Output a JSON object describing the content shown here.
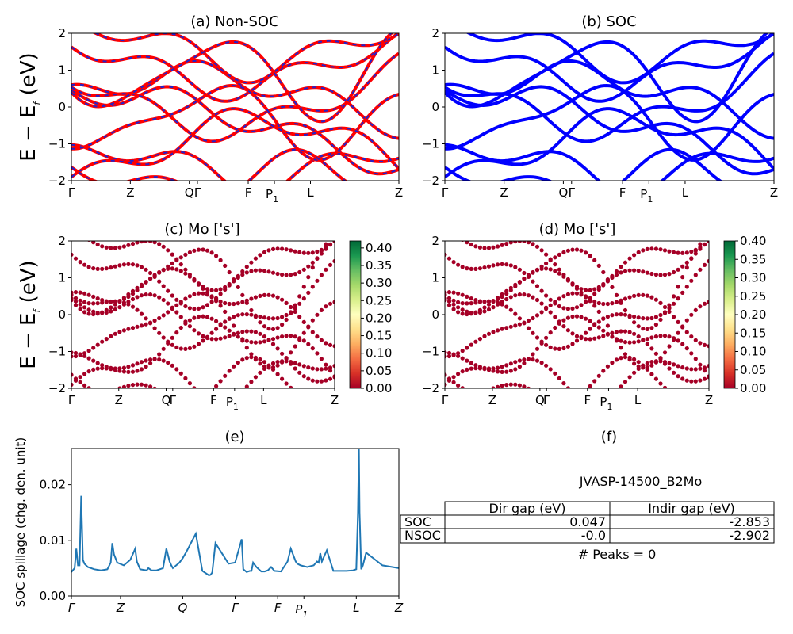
{
  "colors": {
    "nonsoc_band": "#ff0000",
    "nonsoc_dash": "#2222cc",
    "soc_band": "#0000ff",
    "spillage_line": "#1f77b4",
    "colormap": [
      "#a50026",
      "#d73027",
      "#f46d43",
      "#fdae61",
      "#fee08b",
      "#ffffbf",
      "#d9ef8b",
      "#a6d96a",
      "#66bd63",
      "#1a9850",
      "#006837"
    ]
  },
  "band_axes": {
    "ylim": [
      -2,
      2
    ],
    "yticks": [
      "2",
      "1",
      "0",
      "−1",
      "−2"
    ],
    "ylabel_main": "E − E",
    "ylabel_sub": "f",
    "ylabel_unit": " (eV)",
    "kpath": [
      {
        "label": "Γ",
        "pos": 0.0
      },
      {
        "label": "Z",
        "pos": 0.18
      },
      {
        "label": "Q",
        "pos": 0.36
      },
      {
        "label": "Γ",
        "pos": 0.385
      },
      {
        "label": "F",
        "pos": 0.54
      },
      {
        "label": "P",
        "sub": "1",
        "pos": 0.62
      },
      {
        "label": "L",
        "pos": 0.73
      },
      {
        "label": "Z",
        "pos": 1.0
      }
    ]
  },
  "chart_data": [
    {
      "type": "line",
      "title": "(a) Non-SOC",
      "ylim": [
        -2,
        2
      ],
      "xlabel": "",
      "ylabel": "E − E_f (eV)",
      "grid": false
    },
    {
      "type": "line",
      "title": "(b) SOC",
      "ylim": [
        -2,
        2
      ],
      "xlabel": "",
      "ylabel": "",
      "grid": false
    },
    {
      "type": "scatter",
      "title": "(c)  Mo ['s']",
      "ylim": [
        -2,
        2
      ],
      "ylabel": "E − E_f (eV)",
      "colorbar": {
        "range": [
          0.0,
          0.42
        ],
        "ticks": [
          "0.00",
          "0.05",
          "0.10",
          "0.15",
          "0.20",
          "0.25",
          "0.30",
          "0.35",
          "0.40"
        ]
      }
    },
    {
      "type": "scatter",
      "title": "(d) Mo ['s']",
      "ylim": [
        -2,
        2
      ],
      "ylabel": "",
      "colorbar": {
        "range": [
          0.0,
          0.4
        ],
        "ticks": [
          "0.00",
          "0.05",
          "0.10",
          "0.15",
          "0.20",
          "0.25",
          "0.30",
          "0.35",
          "0.40"
        ]
      }
    },
    {
      "type": "line",
      "title": "(e)",
      "ylabel": "SOC spillage (chg. den. unit)",
      "ylim": [
        0,
        0.0265
      ],
      "yticks": [
        "0.00",
        "0.01",
        "0.02"
      ],
      "xticks": [
        {
          "label": "Γ",
          "pos": 0.0
        },
        {
          "label": "Z",
          "pos": 0.15
        },
        {
          "label": "Q",
          "pos": 0.34
        },
        {
          "label": "Γ",
          "pos": 0.5
        },
        {
          "label": "F",
          "pos": 0.63
        },
        {
          "label": "P",
          "sub": "1",
          "pos": 0.71
        },
        {
          "label": "L",
          "pos": 0.87
        },
        {
          "label": "Z",
          "pos": 1.0
        }
      ],
      "x": [
        0,
        0.01,
        0.015,
        0.02,
        0.025,
        0.03,
        0.035,
        0.04,
        0.05,
        0.07,
        0.09,
        0.11,
        0.12,
        0.125,
        0.13,
        0.14,
        0.16,
        0.18,
        0.195,
        0.2,
        0.21,
        0.23,
        0.235,
        0.245,
        0.26,
        0.28,
        0.29,
        0.3,
        0.305,
        0.31,
        0.32,
        0.33,
        0.34,
        0.35,
        0.38,
        0.4,
        0.42,
        0.425,
        0.43,
        0.44,
        0.48,
        0.5,
        0.52,
        0.525,
        0.535,
        0.545,
        0.55,
        0.555,
        0.565,
        0.58,
        0.59,
        0.6,
        0.61,
        0.62,
        0.64,
        0.66,
        0.67,
        0.685,
        0.69,
        0.7,
        0.72,
        0.74,
        0.75,
        0.755,
        0.76,
        0.765,
        0.78,
        0.8,
        0.82,
        0.84,
        0.86,
        0.87,
        0.875,
        0.878,
        0.88,
        0.885,
        0.89,
        0.9,
        0.95,
        1.0
      ],
      "values": [
        0.0043,
        0.005,
        0.0085,
        0.0055,
        0.0055,
        0.018,
        0.0065,
        0.0058,
        0.0052,
        0.0048,
        0.0046,
        0.0048,
        0.006,
        0.0095,
        0.0075,
        0.006,
        0.0055,
        0.0065,
        0.0085,
        0.0062,
        0.0048,
        0.0046,
        0.005,
        0.0046,
        0.0046,
        0.005,
        0.0085,
        0.0062,
        0.0055,
        0.005,
        0.0055,
        0.006,
        0.0068,
        0.0078,
        0.0112,
        0.0045,
        0.0037,
        0.0038,
        0.0042,
        0.0095,
        0.0058,
        0.006,
        0.0102,
        0.0048,
        0.0043,
        0.0045,
        0.0045,
        0.006,
        0.0052,
        0.0044,
        0.0044,
        0.0046,
        0.0052,
        0.0045,
        0.0044,
        0.0062,
        0.0085,
        0.0062,
        0.0058,
        0.0055,
        0.0052,
        0.0055,
        0.0062,
        0.006,
        0.0077,
        0.0062,
        0.0082,
        0.0045,
        0.0045,
        0.0045,
        0.0046,
        0.0048,
        0.015,
        0.0265,
        0.015,
        0.0048,
        0.0055,
        0.0078,
        0.0055,
        0.005
      ]
    }
  ],
  "info_panel": {
    "title": "(f)",
    "material": "JVASP-14500_B2Mo",
    "columns": [
      "",
      "Dir gap (eV)",
      "Indir gap (eV)"
    ],
    "rows": [
      {
        "label": "SOC",
        "dir": "0.047",
        "indir": "-2.853"
      },
      {
        "label": "NSOC",
        "dir": "-0.0",
        "indir": "-2.902"
      }
    ],
    "peaks": "# Peaks = 0"
  }
}
